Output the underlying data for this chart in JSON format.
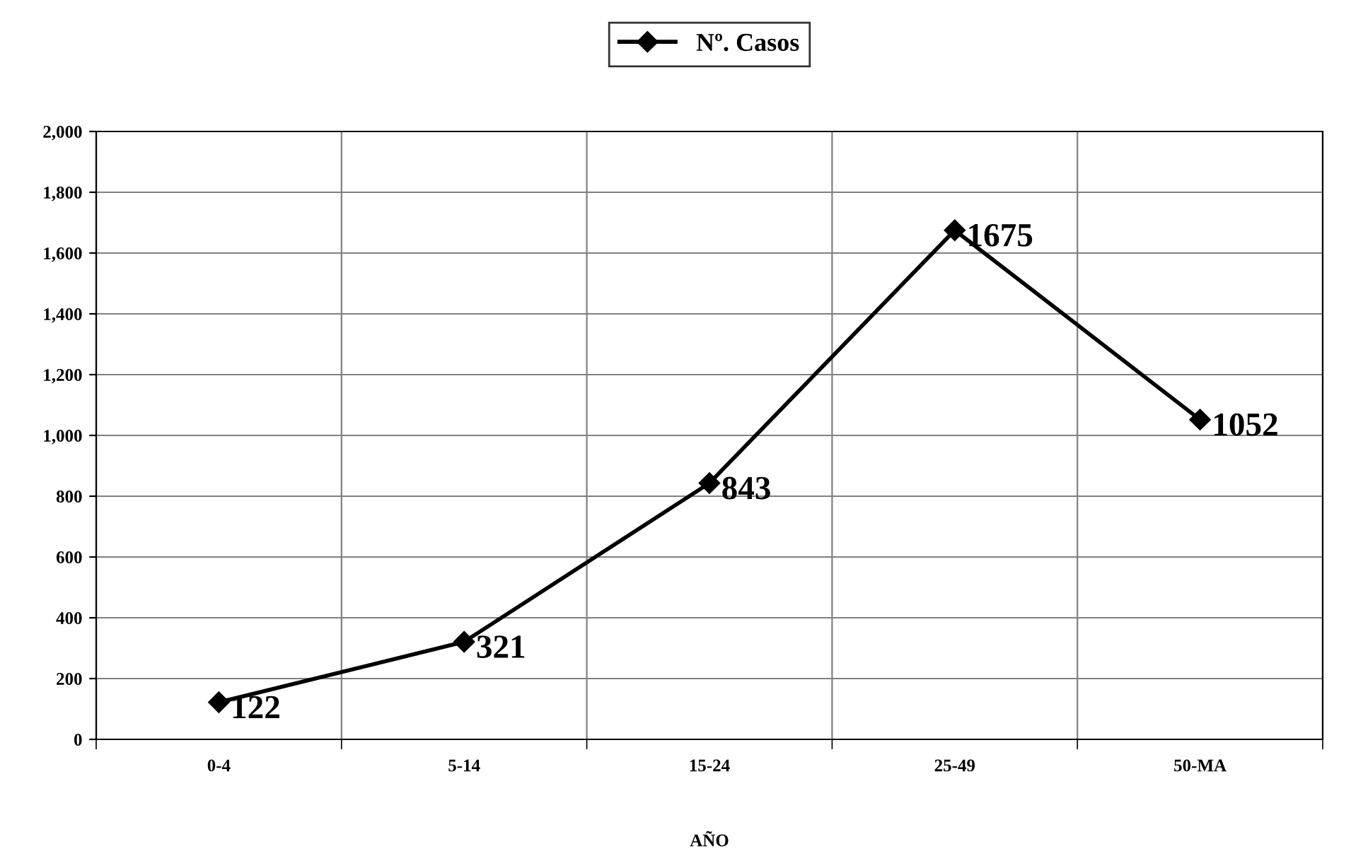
{
  "chart_data": {
    "type": "line",
    "xlabel": "AÑO",
    "categories": [
      "0-4",
      "5-14",
      "15-24",
      "25-49",
      "50-MA"
    ],
    "series": [
      {
        "name": "Nº. Casos",
        "color": "#000000",
        "values": [
          122,
          321,
          843,
          1675,
          1052
        ]
      }
    ],
    "ylim": [
      0,
      2000
    ],
    "yticks": [
      0,
      200,
      400,
      600,
      800,
      {
        "value": 1000,
        "label": "1,000"
      },
      {
        "value": 1200,
        "label": "1,200"
      },
      {
        "value": 1400,
        "label": "1,400"
      },
      {
        "value": 1600,
        "label": "1,600"
      },
      {
        "value": 1800,
        "label": "1,800"
      },
      {
        "value": 2000,
        "label": "2,000"
      }
    ],
    "grid": true,
    "legend": "top",
    "marker": "diamond",
    "line_style": "solid",
    "data_labels": true
  }
}
